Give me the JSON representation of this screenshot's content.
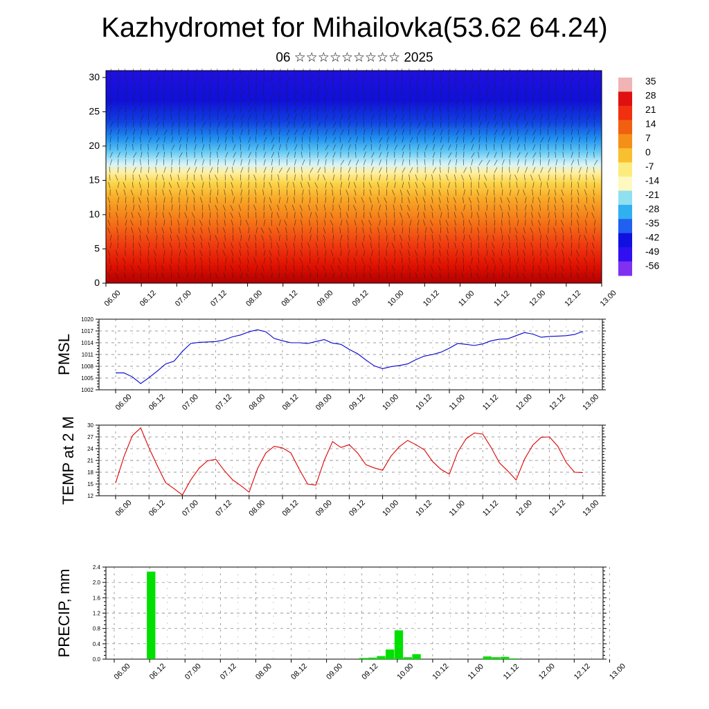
{
  "title": "Kazhydromet for Mihailovka(53.62 64.24)",
  "subtitle": "06 ☆☆☆☆☆☆☆☆☆ 2025",
  "chart_data": [
    {
      "type": "heatmap",
      "x_tick_labels": [
        "06.00",
        "06.12",
        "07.00",
        "07.12",
        "08.00",
        "08.12",
        "09.00",
        "09.12",
        "10.00",
        "10.12",
        "11.00",
        "11.12",
        "12.00",
        "12.12",
        "13.00"
      ],
      "y_tick_labels": [
        "0",
        "5",
        "10",
        "15",
        "20",
        "25",
        "30"
      ],
      "ylim": [
        0,
        31
      ],
      "colorbar_labels": [
        "35",
        "28",
        "21",
        "14",
        "7",
        "0",
        "-7",
        "-14",
        "-21",
        "-28",
        "-35",
        "-42",
        "-49",
        "-56"
      ],
      "colorbar_colors": [
        "#f0b4b4",
        "#e01010",
        "#f03010",
        "#f06010",
        "#f49018",
        "#f8c030",
        "#fcec80",
        "#fff8c0",
        "#90e0f0",
        "#30b0f0",
        "#2060f0",
        "#1010e0",
        "#3010f0",
        "#8030f0"
      ]
    },
    {
      "type": "line",
      "ylabel": "PMSL",
      "x_tick_labels": [
        "06.00",
        "06.12",
        "07.00",
        "07.12",
        "08.00",
        "08.12",
        "09.00",
        "09.12",
        "10.00",
        "10.12",
        "11.00",
        "11.12",
        "12.00",
        "12.12",
        "13.00"
      ],
      "y_tick_labels": [
        "1002",
        "1005",
        "1008",
        "1011",
        "1014",
        "1017",
        "1020"
      ],
      "ylim": [
        1002,
        1020
      ],
      "color": "#0000cc",
      "values": [
        1006.3,
        1006.3,
        1005.3,
        1003.6,
        1005.1,
        1006.8,
        1008.6,
        1009.3,
        1011.8,
        1013.8,
        1014.1,
        1014.2,
        1014.3,
        1014.7,
        1015.5,
        1016.0,
        1016.8,
        1017.3,
        1016.8,
        1015.1,
        1014.5,
        1014.0,
        1014.0,
        1013.8,
        1014.3,
        1014.8,
        1013.9,
        1013.6,
        1012.3,
        1011.2,
        1009.6,
        1008.1,
        1007.4,
        1007.9,
        1008.2,
        1008.6,
        1009.7,
        1010.6,
        1011.0,
        1011.6,
        1012.6,
        1013.8,
        1013.6,
        1013.3,
        1013.7,
        1014.5,
        1014.9,
        1015.0,
        1015.8,
        1016.6,
        1016.2,
        1015.4,
        1015.6,
        1015.7,
        1015.8,
        1016.1,
        1016.9
      ]
    },
    {
      "type": "line",
      "ylabel": "TEMP at 2 M",
      "x_tick_labels": [
        "06.00",
        "06.12",
        "07.00",
        "07.12",
        "08.00",
        "08.12",
        "09.00",
        "09.12",
        "10.00",
        "10.12",
        "11.00",
        "11.12",
        "12.00",
        "12.12",
        "13.00"
      ],
      "y_tick_labels": [
        "12",
        "15",
        "18",
        "21",
        "24",
        "27",
        "30"
      ],
      "ylim": [
        12,
        30
      ],
      "color": "#dd0000",
      "values": [
        15.3,
        22.0,
        27.3,
        29.3,
        24.2,
        19.6,
        15.3,
        13.8,
        12.2,
        16.0,
        19.0,
        20.9,
        21.3,
        18.5,
        16.1,
        14.6,
        12.9,
        18.9,
        22.9,
        24.6,
        24.2,
        22.9,
        18.8,
        15.0,
        14.7,
        21.0,
        25.8,
        24.3,
        25.0,
        22.9,
        19.9,
        19.1,
        18.5,
        22.1,
        24.5,
        26.1,
        25.0,
        23.7,
        20.7,
        18.7,
        17.5,
        23.1,
        26.5,
        28.0,
        27.7,
        24.3,
        20.4,
        18.3,
        16.0,
        21.3,
        24.9,
        26.9,
        27.0,
        24.6,
        20.5,
        18.0,
        17.9
      ]
    },
    {
      "type": "bar",
      "ylabel": "PRECIP, mm",
      "x_tick_labels": [
        "06.00",
        "06.12",
        "07.00",
        "07.12",
        "08.00",
        "08.12",
        "09.00",
        "09.12",
        "10.00",
        "10.12",
        "11.00",
        "11.12",
        "12.00",
        "12.12",
        "13.00"
      ],
      "y_tick_labels": [
        "0.0",
        "0.4",
        "0.8",
        "1.2",
        "1.6",
        "2.0",
        "2.4"
      ],
      "ylim": [
        0,
        2.4
      ],
      "color": "#00e000",
      "bars": [
        {
          "x": 4,
          "value": 2.28
        },
        {
          "x": 28,
          "value": 0.03
        },
        {
          "x": 29,
          "value": 0.04
        },
        {
          "x": 30,
          "value": 0.08
        },
        {
          "x": 31,
          "value": 0.25
        },
        {
          "x": 32,
          "value": 0.75
        },
        {
          "x": 33,
          "value": 0.05
        },
        {
          "x": 34,
          "value": 0.13
        },
        {
          "x": 42,
          "value": 0.07
        },
        {
          "x": 43,
          "value": 0.05
        },
        {
          "x": 44,
          "value": 0.06
        },
        {
          "x": 45,
          "value": 0.02
        }
      ]
    }
  ]
}
